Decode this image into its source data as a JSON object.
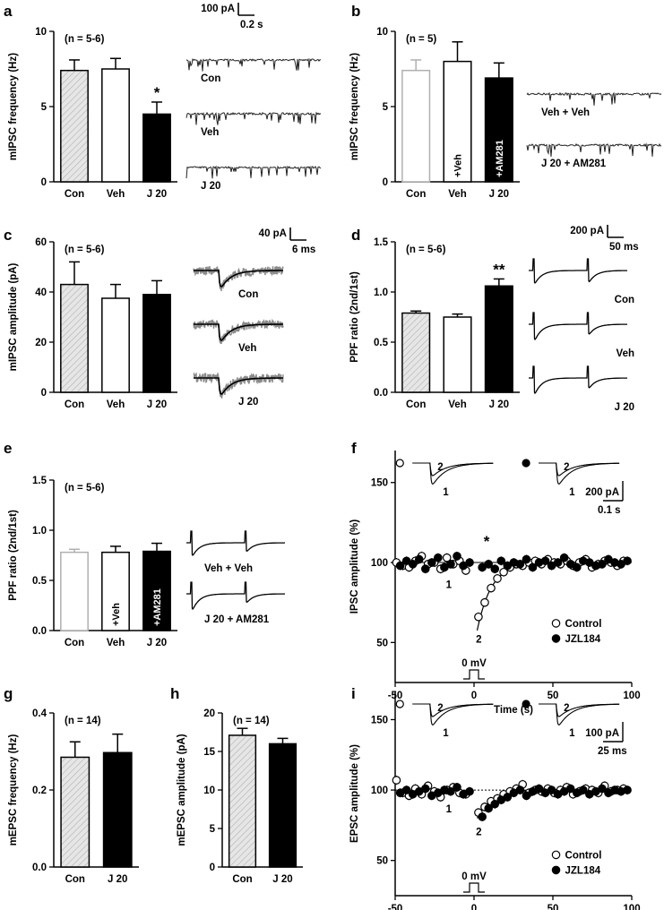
{
  "chart_data": [
    {
      "panel": "a",
      "type": "bar",
      "ylabel": "mIPSC frequency (Hz)",
      "ylim": [
        0,
        10
      ],
      "yticks": [
        "0",
        "5",
        "10"
      ],
      "annotation": "(n = 5-6)",
      "categories": [
        "Con",
        "Veh",
        "J 20"
      ],
      "values": [
        7.4,
        7.5,
        4.5
      ],
      "errors": [
        0.7,
        0.7,
        0.8
      ],
      "fills": [
        "hatch",
        "#ffffff",
        "#000000"
      ],
      "significance": [
        "",
        "",
        "*"
      ],
      "bar_labels": [
        "",
        "",
        ""
      ],
      "trace_labels": [
        "Con",
        "Veh",
        "J 20"
      ],
      "scalebar": {
        "y": "100 pA",
        "x": "0.2 s"
      }
    },
    {
      "panel": "b",
      "type": "bar",
      "ylabel": "mIPSC frequency (Hz)",
      "ylim": [
        0,
        10
      ],
      "yticks": [
        "0",
        "5",
        "10"
      ],
      "annotation": "(n = 5)",
      "categories": [
        "Con",
        "Veh",
        "J 20"
      ],
      "values": [
        7.4,
        8.0,
        6.9
      ],
      "errors": [
        0.7,
        1.3,
        1.0
      ],
      "fills": [
        "#ffffff",
        "#ffffff",
        "#000000"
      ],
      "significance": [
        "",
        "",
        ""
      ],
      "bar_labels": [
        "",
        "+Veh",
        "+AM281"
      ],
      "trace_labels": [
        "Veh + Veh",
        "J 20 + AM281"
      ]
    },
    {
      "panel": "c",
      "type": "bar",
      "ylabel": "mIPSC amplitude (pA)",
      "ylim": [
        0,
        60
      ],
      "yticks": [
        "0",
        "20",
        "40",
        "60"
      ],
      "annotation": "(n = 5-6)",
      "categories": [
        "Con",
        "Veh",
        "J 20"
      ],
      "values": [
        43,
        37.5,
        39
      ],
      "errors": [
        9,
        5.5,
        5.5
      ],
      "fills": [
        "hatch",
        "#ffffff",
        "#000000"
      ],
      "significance": [
        "",
        "",
        ""
      ],
      "bar_labels": [
        "",
        "",
        ""
      ],
      "trace_labels": [
        "Con",
        "Veh",
        "J 20"
      ],
      "scalebar": {
        "y": "40 pA",
        "x": "6 ms"
      }
    },
    {
      "panel": "d",
      "type": "bar",
      "ylabel": "PPF ratio (2nd/1st)",
      "ylim": [
        0,
        1.5
      ],
      "yticks": [
        "0.0",
        "0.5",
        "1.0",
        "1.5"
      ],
      "annotation": "(n = 5-6)",
      "categories": [
        "Con",
        "Veh",
        "J 20"
      ],
      "values": [
        0.79,
        0.75,
        1.06
      ],
      "errors": [
        0.02,
        0.03,
        0.07
      ],
      "fills": [
        "hatch",
        "#ffffff",
        "#000000"
      ],
      "significance": [
        "",
        "",
        "**"
      ],
      "bar_labels": [
        "",
        "",
        ""
      ],
      "trace_labels": [
        "Con",
        "Veh",
        "J 20"
      ],
      "scalebar": {
        "y": "200 pA",
        "x": "50 ms"
      }
    },
    {
      "panel": "e",
      "type": "bar",
      "ylabel": "PPF ratio (2nd/1st)",
      "ylim": [
        0,
        1.5
      ],
      "yticks": [
        "0.0",
        "0.5",
        "1.0",
        "1.5"
      ],
      "annotation": "(n = 5-6)",
      "categories": [
        "Con",
        "Veh",
        "J 20"
      ],
      "values": [
        0.78,
        0.78,
        0.79
      ],
      "errors": [
        0.03,
        0.06,
        0.08
      ],
      "fills": [
        "#ffffff",
        "#ffffff",
        "#000000"
      ],
      "significance": [
        "",
        "",
        ""
      ],
      "bar_labels": [
        "",
        "+Veh",
        "+AM281"
      ],
      "trace_labels": [
        "Veh + Veh",
        "J 20 + AM281"
      ]
    },
    {
      "panel": "f",
      "type": "scatter",
      "xlabel": "Time (s)",
      "ylabel": "IPSC amplitude (%)",
      "xlim": [
        -50,
        100
      ],
      "ylim": [
        25,
        170
      ],
      "xticks": [
        "-50",
        "0",
        "50",
        "100"
      ],
      "yticks": [
        "50",
        "100",
        "150"
      ],
      "stim_label": "0 mV",
      "star": "*",
      "point_labels": [
        "1",
        "2"
      ],
      "inset_labels": [
        "2",
        "1",
        "2",
        "1"
      ],
      "scalebar": {
        "y": "200 pA",
        "x": "0.1 s"
      },
      "x": [
        -48,
        -44,
        -40,
        -36,
        -32,
        -28,
        -24,
        -20,
        -16,
        -12,
        -8,
        -4,
        4,
        8,
        12,
        16,
        20,
        24,
        28,
        32,
        36,
        40,
        44,
        48,
        52,
        56,
        60,
        64,
        68,
        72,
        76,
        80,
        84,
        88,
        92,
        96
      ],
      "series": [
        {
          "name": "Control",
          "marker": "open",
          "values": [
            100,
            98,
            97,
            101,
            104,
            99,
            100,
            96,
            103,
            99,
            101,
            95,
            66,
            75,
            84,
            90,
            94,
            97,
            99,
            98,
            100,
            101,
            99,
            102,
            100,
            99,
            101,
            98,
            100,
            102,
            97,
            99,
            101,
            100,
            98,
            101
          ]
        },
        {
          "name": "JZL184",
          "marker": "filled",
          "values": [
            98,
            101,
            99,
            102,
            96,
            100,
            103,
            97,
            99,
            104,
            98,
            100,
            97,
            99,
            96,
            101,
            98,
            100,
            99,
            102,
            97,
            100,
            101,
            98,
            100,
            103,
            99,
            97,
            101,
            100,
            98,
            99,
            102,
            100,
            99,
            101
          ]
        }
      ]
    },
    {
      "panel": "g",
      "type": "bar",
      "ylabel": "mEPSC frequency (Hz)",
      "ylim": [
        0,
        0.4
      ],
      "yticks": [
        "0.0",
        "0.2",
        "0.4"
      ],
      "annotation": "(n = 14)",
      "categories": [
        "Con",
        "J 20"
      ],
      "values": [
        0.285,
        0.297
      ],
      "errors": [
        0.04,
        0.048
      ],
      "fills": [
        "hatch",
        "#000000"
      ],
      "significance": [
        "",
        ""
      ],
      "bar_labels": [
        "",
        ""
      ]
    },
    {
      "panel": "h",
      "type": "bar",
      "ylabel": "mEPSC amplitude (pA)",
      "ylim": [
        0,
        20
      ],
      "yticks": [
        "0",
        "5",
        "10",
        "15",
        "20"
      ],
      "annotation": "(n = 14)",
      "categories": [
        "Con",
        "J 20"
      ],
      "values": [
        17.1,
        16.0
      ],
      "errors": [
        0.9,
        0.7
      ],
      "fills": [
        "hatch",
        "#000000"
      ],
      "significance": [
        "",
        ""
      ],
      "bar_labels": [
        "",
        ""
      ]
    },
    {
      "panel": "i",
      "type": "scatter",
      "xlabel": "Time (s)",
      "ylabel": "EPSC amplitude (%)",
      "xlim": [
        -50,
        100
      ],
      "ylim": [
        25,
        170
      ],
      "xticks": [
        "-50",
        "0",
        "50",
        "100"
      ],
      "yticks": [
        "50",
        "100",
        "150"
      ],
      "stim_label": "0 mV",
      "star": "",
      "point_labels": [
        "1",
        "2"
      ],
      "inset_labels": [
        "2",
        "1",
        "2",
        "1"
      ],
      "scalebar": {
        "y": "100 pA",
        "x": "25 ms"
      },
      "x": [
        -48,
        -44,
        -40,
        -36,
        -32,
        -28,
        -24,
        -20,
        -16,
        -12,
        -8,
        -4,
        4,
        8,
        12,
        16,
        20,
        24,
        28,
        32,
        36,
        40,
        44,
        48,
        52,
        56,
        60,
        64,
        68,
        72,
        76,
        80,
        84,
        88,
        92,
        96
      ],
      "series": [
        {
          "name": "Control",
          "marker": "open",
          "values": [
            107,
            98,
            96,
            101,
            97,
            103,
            99,
            95,
            100,
            102,
            98,
            97,
            84,
            88,
            92,
            94,
            97,
            99,
            101,
            104,
            98,
            100,
            99,
            101,
            98,
            100,
            102,
            97,
            99,
            101,
            100,
            98,
            103,
            99,
            100,
            101
          ]
        },
        {
          "name": "JZL184",
          "marker": "filled",
          "values": [
            98,
            100,
            97,
            99,
            101,
            96,
            98,
            100,
            99,
            102,
            97,
            99,
            81,
            87,
            90,
            93,
            95,
            98,
            100,
            96,
            99,
            101,
            98,
            100,
            97,
            99,
            101,
            98,
            100,
            97,
            99,
            101,
            98,
            100,
            99,
            100
          ]
        }
      ]
    }
  ]
}
